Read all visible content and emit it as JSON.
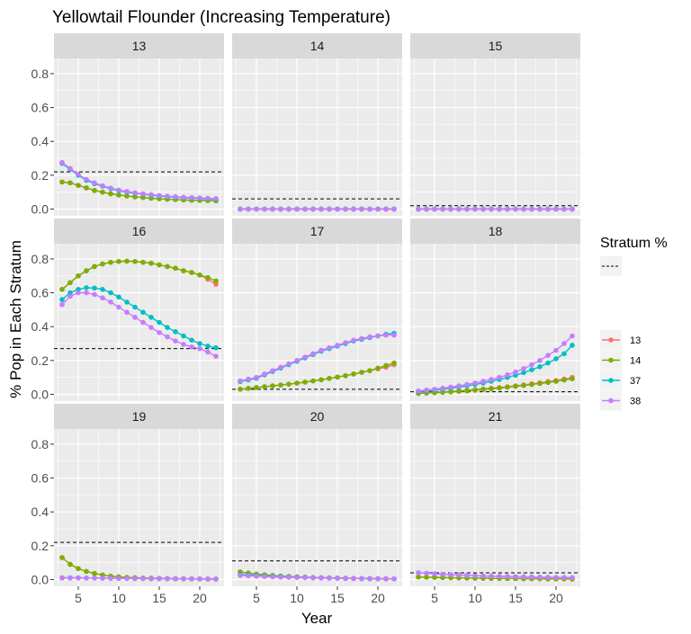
{
  "chart_data": {
    "type": "line",
    "title": "Yellowtail Flounder  (Increasing Temperature)",
    "xlabel": "Year",
    "ylabel": "% Pop in Each Stratum",
    "xlim": [
      2,
      23
    ],
    "ylim": [
      -0.04,
      0.89
    ],
    "x_ticks": [
      5,
      10,
      15,
      20
    ],
    "y_ticks": [
      0.0,
      0.2,
      0.4,
      0.6,
      0.8
    ],
    "x_tick_labels": [
      "5",
      "10",
      "15",
      "20"
    ],
    "y_tick_labels": [
      "0.0",
      "0.2",
      "0.4",
      "0.6",
      "0.8"
    ],
    "grid": true,
    "legend": {
      "placement": "right",
      "title": "Stratum %",
      "line_key": "---",
      "entries": [
        {
          "name": "13",
          "color": "#F8766D"
        },
        {
          "name": "14",
          "color": "#7CAE00"
        },
        {
          "name": "37",
          "color": "#00BFC4"
        },
        {
          "name": "38",
          "color": "#C77CFF"
        }
      ]
    },
    "years": [
      3,
      4,
      5,
      6,
      7,
      8,
      9,
      10,
      11,
      12,
      13,
      14,
      15,
      16,
      17,
      18,
      19,
      20,
      21,
      22
    ],
    "panels": [
      {
        "strip": "13",
        "threshold": 0.22,
        "series": [
          {
            "name": "13",
            "values": [
              0.16,
              0.155,
              0.14,
              0.125,
              0.11,
              0.1,
              0.09,
              0.083,
              0.077,
              0.072,
              0.068,
              0.064,
              0.061,
              0.058,
              0.056,
              0.054,
              0.052,
              0.051,
              0.05,
              0.049
            ]
          },
          {
            "name": "14",
            "values": [
              0.16,
              0.155,
              0.14,
              0.125,
              0.11,
              0.1,
              0.09,
              0.083,
              0.077,
              0.072,
              0.068,
              0.064,
              0.061,
              0.058,
              0.056,
              0.054,
              0.052,
              0.051,
              0.05,
              0.049
            ]
          },
          {
            "name": "37",
            "values": [
              0.27,
              0.235,
              0.2,
              0.17,
              0.15,
              0.135,
              0.12,
              0.108,
              0.1,
              0.093,
              0.087,
              0.082,
              0.077,
              0.073,
              0.07,
              0.067,
              0.065,
              0.063,
              0.061,
              0.059
            ]
          },
          {
            "name": "38",
            "values": [
              0.275,
              0.24,
              0.205,
              0.175,
              0.155,
              0.138,
              0.124,
              0.112,
              0.104,
              0.096,
              0.09,
              0.085,
              0.08,
              0.076,
              0.073,
              0.07,
              0.068,
              0.066,
              0.064,
              0.062
            ]
          }
        ]
      },
      {
        "strip": "14",
        "threshold": 0.06,
        "series": [
          {
            "name": "13",
            "values": [
              0,
              0,
              0,
              0,
              0,
              0,
              0,
              0,
              0,
              0,
              0,
              0,
              0,
              0,
              0,
              0,
              0,
              0,
              0,
              0
            ]
          },
          {
            "name": "14",
            "values": [
              0,
              0,
              0,
              0,
              0,
              0,
              0,
              0,
              0,
              0,
              0,
              0,
              0,
              0,
              0,
              0,
              0,
              0,
              0,
              0
            ]
          },
          {
            "name": "37",
            "values": [
              0,
              0,
              0,
              0,
              0,
              0,
              0,
              0,
              0,
              0,
              0,
              0,
              0,
              0,
              0,
              0,
              0,
              0,
              0,
              0
            ]
          },
          {
            "name": "38",
            "values": [
              0,
              0,
              0,
              0,
              0,
              0,
              0,
              0,
              0,
              0,
              0,
              0,
              0,
              0,
              0,
              0,
              0,
              0,
              0,
              0
            ]
          }
        ]
      },
      {
        "strip": "15",
        "threshold": 0.02,
        "series": [
          {
            "name": "13",
            "values": [
              0,
              0,
              0,
              0,
              0,
              0,
              0,
              0,
              0,
              0,
              0,
              0,
              0,
              0,
              0,
              0,
              0,
              0,
              0,
              0
            ]
          },
          {
            "name": "14",
            "values": [
              0,
              0,
              0,
              0,
              0,
              0,
              0,
              0,
              0,
              0,
              0,
              0,
              0,
              0,
              0,
              0,
              0,
              0,
              0,
              0
            ]
          },
          {
            "name": "37",
            "values": [
              0,
              0,
              0,
              0,
              0,
              0,
              0,
              0,
              0,
              0,
              0,
              0,
              0,
              0,
              0,
              0,
              0,
              0,
              0,
              0
            ]
          },
          {
            "name": "38",
            "values": [
              0,
              0,
              0,
              0,
              0,
              0,
              0,
              0,
              0,
              0,
              0,
              0,
              0,
              0,
              0,
              0,
              0,
              0,
              0,
              0
            ]
          }
        ]
      },
      {
        "strip": "16",
        "threshold": 0.27,
        "series": [
          {
            "name": "13",
            "values": [
              0.62,
              0.66,
              0.7,
              0.73,
              0.755,
              0.77,
              0.78,
              0.785,
              0.787,
              0.785,
              0.78,
              0.775,
              0.765,
              0.755,
              0.745,
              0.73,
              0.72,
              0.705,
              0.68,
              0.65
            ]
          },
          {
            "name": "14",
            "values": [
              0.62,
              0.66,
              0.7,
              0.73,
              0.755,
              0.77,
              0.78,
              0.785,
              0.787,
              0.785,
              0.78,
              0.775,
              0.765,
              0.755,
              0.745,
              0.73,
              0.72,
              0.705,
              0.69,
              0.67
            ]
          },
          {
            "name": "37",
            "values": [
              0.56,
              0.6,
              0.62,
              0.63,
              0.628,
              0.62,
              0.6,
              0.575,
              0.545,
              0.515,
              0.485,
              0.455,
              0.425,
              0.395,
              0.37,
              0.345,
              0.32,
              0.3,
              0.285,
              0.275
            ]
          },
          {
            "name": "38",
            "values": [
              0.53,
              0.58,
              0.6,
              0.6,
              0.59,
              0.57,
              0.545,
              0.515,
              0.485,
              0.455,
              0.425,
              0.395,
              0.365,
              0.34,
              0.315,
              0.295,
              0.28,
              0.27,
              0.25,
              0.225
            ]
          }
        ]
      },
      {
        "strip": "17",
        "threshold": 0.03,
        "series": [
          {
            "name": "13",
            "values": [
              0.03,
              0.035,
              0.04,
              0.045,
              0.05,
              0.055,
              0.06,
              0.066,
              0.072,
              0.079,
              0.086,
              0.094,
              0.102,
              0.11,
              0.12,
              0.13,
              0.14,
              0.15,
              0.16,
              0.175
            ]
          },
          {
            "name": "14",
            "values": [
              0.03,
              0.035,
              0.04,
              0.045,
              0.05,
              0.055,
              0.06,
              0.066,
              0.072,
              0.079,
              0.086,
              0.094,
              0.102,
              0.11,
              0.12,
              0.13,
              0.14,
              0.155,
              0.17,
              0.185
            ]
          },
          {
            "name": "37",
            "values": [
              0.075,
              0.085,
              0.095,
              0.115,
              0.135,
              0.155,
              0.175,
              0.195,
              0.215,
              0.235,
              0.255,
              0.27,
              0.285,
              0.3,
              0.315,
              0.325,
              0.335,
              0.345,
              0.355,
              0.36
            ]
          },
          {
            "name": "38",
            "values": [
              0.08,
              0.09,
              0.1,
              0.12,
              0.14,
              0.16,
              0.18,
              0.2,
              0.22,
              0.24,
              0.26,
              0.275,
              0.29,
              0.305,
              0.32,
              0.33,
              0.34,
              0.345,
              0.35,
              0.35
            ]
          }
        ]
      },
      {
        "strip": "18",
        "threshold": 0.015,
        "series": [
          {
            "name": "13",
            "values": [
              0.008,
              0.01,
              0.012,
              0.015,
              0.018,
              0.021,
              0.024,
              0.028,
              0.032,
              0.036,
              0.04,
              0.045,
              0.05,
              0.056,
              0.062,
              0.068,
              0.075,
              0.082,
              0.09,
              0.1
            ]
          },
          {
            "name": "14",
            "values": [
              0.005,
              0.007,
              0.009,
              0.011,
              0.014,
              0.017,
              0.02,
              0.024,
              0.028,
              0.032,
              0.037,
              0.042,
              0.047,
              0.052,
              0.058,
              0.064,
              0.07,
              0.077,
              0.084,
              0.092
            ]
          },
          {
            "name": "37",
            "values": [
              0.015,
              0.02,
              0.025,
              0.03,
              0.036,
              0.043,
              0.05,
              0.058,
              0.067,
              0.077,
              0.088,
              0.1,
              0.113,
              0.128,
              0.145,
              0.163,
              0.185,
              0.21,
              0.24,
              0.29
            ]
          },
          {
            "name": "38",
            "values": [
              0.02,
              0.025,
              0.03,
              0.036,
              0.043,
              0.05,
              0.058,
              0.067,
              0.077,
              0.088,
              0.1,
              0.115,
              0.132,
              0.152,
              0.175,
              0.2,
              0.23,
              0.26,
              0.3,
              0.345
            ]
          }
        ]
      },
      {
        "strip": "19",
        "threshold": 0.22,
        "series": [
          {
            "name": "13",
            "values": [
              0.13,
              0.09,
              0.065,
              0.048,
              0.036,
              0.027,
              0.02,
              0.016,
              0.013,
              0.011,
              0.009,
              0.008,
              0.007,
              0.006,
              0.005,
              0.005,
              0.004,
              0.004,
              0.003,
              0.003
            ]
          },
          {
            "name": "14",
            "values": [
              0.13,
              0.09,
              0.065,
              0.048,
              0.036,
              0.027,
              0.02,
              0.016,
              0.013,
              0.011,
              0.009,
              0.008,
              0.007,
              0.006,
              0.005,
              0.005,
              0.004,
              0.004,
              0.003,
              0.003
            ]
          },
          {
            "name": "37",
            "values": [
              0.01,
              0.01,
              0.01,
              0.009,
              0.009,
              0.008,
              0.008,
              0.007,
              0.007,
              0.006,
              0.006,
              0.005,
              0.005,
              0.005,
              0.004,
              0.004,
              0.004,
              0.003,
              0.003,
              0.003
            ]
          },
          {
            "name": "38",
            "values": [
              0.01,
              0.01,
              0.01,
              0.009,
              0.009,
              0.008,
              0.008,
              0.007,
              0.007,
              0.006,
              0.006,
              0.005,
              0.005,
              0.005,
              0.004,
              0.004,
              0.004,
              0.003,
              0.003,
              0.003
            ]
          }
        ]
      },
      {
        "strip": "20",
        "threshold": 0.11,
        "series": [
          {
            "name": "13",
            "values": [
              0.045,
              0.038,
              0.032,
              0.028,
              0.024,
              0.021,
              0.018,
              0.016,
              0.014,
              0.012,
              0.011,
              0.01,
              0.009,
              0.008,
              0.007,
              0.006,
              0.006,
              0.005,
              0.005,
              0.004
            ]
          },
          {
            "name": "14",
            "values": [
              0.045,
              0.038,
              0.032,
              0.028,
              0.024,
              0.021,
              0.018,
              0.016,
              0.014,
              0.012,
              0.011,
              0.01,
              0.009,
              0.008,
              0.007,
              0.006,
              0.006,
              0.005,
              0.005,
              0.004
            ]
          },
          {
            "name": "37",
            "values": [
              0.03,
              0.027,
              0.024,
              0.021,
              0.019,
              0.017,
              0.015,
              0.013,
              0.012,
              0.011,
              0.01,
              0.009,
              0.008,
              0.007,
              0.006,
              0.006,
              0.005,
              0.005,
              0.004,
              0.004
            ]
          },
          {
            "name": "38",
            "values": [
              0.025,
              0.022,
              0.02,
              0.018,
              0.016,
              0.014,
              0.013,
              0.012,
              0.011,
              0.01,
              0.009,
              0.008,
              0.007,
              0.006,
              0.006,
              0.005,
              0.005,
              0.004,
              0.004,
              0.004
            ]
          }
        ]
      },
      {
        "strip": "21",
        "threshold": 0.04,
        "series": [
          {
            "name": "13",
            "values": [
              0.015,
              0.014,
              0.013,
              0.012,
              0.011,
              0.01,
              0.009,
              0.008,
              0.008,
              0.007,
              0.007,
              0.006,
              0.006,
              0.005,
              0.005,
              0.005,
              0.004,
              0.004,
              0.004,
              0.003
            ]
          },
          {
            "name": "14",
            "values": [
              0.015,
              0.014,
              0.013,
              0.012,
              0.011,
              0.01,
              0.009,
              0.008,
              0.008,
              0.007,
              0.007,
              0.006,
              0.006,
              0.005,
              0.005,
              0.005,
              0.004,
              0.004,
              0.004,
              0.003
            ]
          },
          {
            "name": "37",
            "values": [
              0.04,
              0.037,
              0.034,
              0.031,
              0.029,
              0.027,
              0.025,
              0.023,
              0.021,
              0.02,
              0.019,
              0.018,
              0.017,
              0.016,
              0.015,
              0.014,
              0.013,
              0.012,
              0.012,
              0.011
            ]
          },
          {
            "name": "38",
            "values": [
              0.04,
              0.037,
              0.034,
              0.031,
              0.029,
              0.027,
              0.025,
              0.023,
              0.021,
              0.02,
              0.019,
              0.018,
              0.017,
              0.016,
              0.015,
              0.014,
              0.013,
              0.012,
              0.012,
              0.011
            ]
          }
        ]
      }
    ]
  }
}
